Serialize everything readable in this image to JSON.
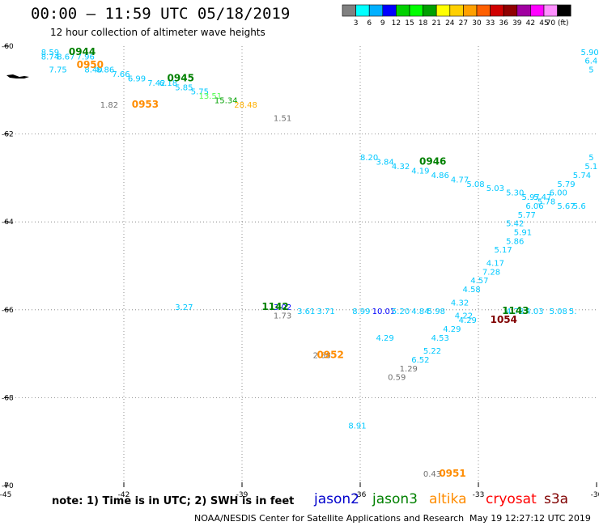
{
  "header": {
    "title": "00:00 – 11:59 UTC 05/18/2019",
    "subtitle": "12 hour collection of altimeter wave heights"
  },
  "colorbar": {
    "ticks": [
      "3",
      "6",
      "9",
      "12",
      "15",
      "18",
      "21",
      "24",
      "27",
      "30",
      "33",
      "36",
      "39",
      "42",
      "45",
      "70 (ft)"
    ],
    "colors": [
      "#808080",
      "#00ffff",
      "#00b0ff",
      "#0000ff",
      "#00d000",
      "#00ff00",
      "#00a000",
      "#ffff00",
      "#ffd000",
      "#ffa000",
      "#ff6000",
      "#d00000",
      "#900000",
      "#a000a0",
      "#ff00ff",
      "#ff90ff",
      "#000000"
    ]
  },
  "footer": {
    "note": "note: 1) Time is in UTC; 2) SWH is in feet",
    "satellites": [
      {
        "name": "jason2",
        "color": "#0000cc"
      },
      {
        "name": "jason3",
        "color": "#008000"
      },
      {
        "name": "altika",
        "color": "#ff8c00"
      },
      {
        "name": "cryosat",
        "color": "#ff0000"
      },
      {
        "name": "s3a",
        "color": "#800000"
      }
    ],
    "credit": "NOAA/NESDIS Center for Satellite Applications and Research",
    "generated": "May 19 12:27:12 UTC 2019"
  },
  "chart_data": {
    "type": "scatter",
    "x_ticks": [
      "-45",
      "-42",
      "-39",
      "-36",
      "-33",
      "-30"
    ],
    "y_ticks": [
      "-60",
      "-62",
      "-64",
      "-66",
      "-68",
      "-70"
    ],
    "xlim": [
      -45,
      -30
    ],
    "ylim": [
      -70,
      -60
    ],
    "grid": true,
    "points": [
      {
        "lon": -44.1,
        "lat": -60.2,
        "text": "8.59",
        "color": "#00c8ff"
      },
      {
        "lon": -44.1,
        "lat": -60.3,
        "text": "8.74",
        "color": "#00c8ff"
      },
      {
        "lon": -43.7,
        "lat": -60.3,
        "text": "8.67",
        "color": "#00c8ff"
      },
      {
        "lon": -43.9,
        "lat": -60.6,
        "text": "7.75",
        "color": "#00c8ff"
      },
      {
        "lon": -43.2,
        "lat": -60.3,
        "text": "7.96",
        "color": "#00c8ff"
      },
      {
        "lon": -43.0,
        "lat": -60.6,
        "text": "8.40",
        "color": "#00c8ff"
      },
      {
        "lon": -42.7,
        "lat": -60.6,
        "text": "8.86",
        "color": "#00c8ff"
      },
      {
        "lon": -42.3,
        "lat": -60.7,
        "text": "7.66",
        "color": "#00c8ff"
      },
      {
        "lon": -41.9,
        "lat": -60.8,
        "text": "6.99",
        "color": "#00c8ff"
      },
      {
        "lon": -41.4,
        "lat": -60.9,
        "text": "7.42",
        "color": "#00c8ff"
      },
      {
        "lon": -41.1,
        "lat": -60.9,
        "text": "6.18",
        "color": "#00c8ff"
      },
      {
        "lon": -40.7,
        "lat": -61.0,
        "text": "5.85",
        "color": "#00c8ff"
      },
      {
        "lon": -40.3,
        "lat": -61.1,
        "text": "5.75",
        "color": "#00c8ff"
      },
      {
        "lon": -40.1,
        "lat": -61.2,
        "text": "13.51",
        "color": "#50ff50"
      },
      {
        "lon": -39.7,
        "lat": -61.3,
        "text": "15.34",
        "color": "#00a000"
      },
      {
        "lon": -39.2,
        "lat": -61.4,
        "text": "28.48",
        "color": "#ffb000"
      },
      {
        "lon": -42.6,
        "lat": -61.4,
        "text": "1.82",
        "color": "#707070"
      },
      {
        "lon": -38.2,
        "lat": -61.7,
        "text": "1.51",
        "color": "#707070"
      },
      {
        "lon": -36.0,
        "lat": -62.6,
        "text": "8.20",
        "color": "#00c8ff"
      },
      {
        "lon": -35.6,
        "lat": -62.7,
        "text": "3.84",
        "color": "#00c8ff"
      },
      {
        "lon": -35.2,
        "lat": -62.8,
        "text": "4.32",
        "color": "#00c8ff"
      },
      {
        "lon": -34.7,
        "lat": -62.9,
        "text": "4.19",
        "color": "#00c8ff"
      },
      {
        "lon": -34.2,
        "lat": -63.0,
        "text": "4.86",
        "color": "#00c8ff"
      },
      {
        "lon": -33.7,
        "lat": -63.1,
        "text": "4.77",
        "color": "#00c8ff"
      },
      {
        "lon": -33.3,
        "lat": -63.2,
        "text": "5.08",
        "color": "#00c8ff"
      },
      {
        "lon": -32.8,
        "lat": -63.3,
        "text": "5.03",
        "color": "#00c8ff"
      },
      {
        "lon": -32.3,
        "lat": -63.4,
        "text": "5.30",
        "color": "#00c8ff"
      },
      {
        "lon": -31.9,
        "lat": -63.5,
        "text": "5.97",
        "color": "#00c8ff"
      },
      {
        "lon": -31.6,
        "lat": -63.5,
        "text": "5.47",
        "color": "#00c8ff"
      },
      {
        "lon": -31.5,
        "lat": -63.6,
        "text": "5.78",
        "color": "#00c8ff"
      },
      {
        "lon": -31.0,
        "lat": -63.7,
        "text": "5.67",
        "color": "#00c8ff"
      },
      {
        "lon": -30.6,
        "lat": -63.7,
        "text": "5.6",
        "color": "#00c8ff"
      },
      {
        "lon": -31.8,
        "lat": -63.7,
        "text": "6.06",
        "color": "#00c8ff"
      },
      {
        "lon": -31.2,
        "lat": -63.4,
        "text": "6.00",
        "color": "#00c8ff"
      },
      {
        "lon": -31.0,
        "lat": -63.2,
        "text": "5.79",
        "color": "#00c8ff"
      },
      {
        "lon": -30.6,
        "lat": -63.0,
        "text": "5.74",
        "color": "#00c8ff"
      },
      {
        "lon": -30.3,
        "lat": -62.8,
        "text": "5.1",
        "color": "#00c8ff"
      },
      {
        "lon": -30.2,
        "lat": -62.6,
        "text": "5",
        "color": "#00c8ff"
      },
      {
        "lon": -30.4,
        "lat": -60.2,
        "text": "5.90",
        "color": "#00c8ff"
      },
      {
        "lon": -30.3,
        "lat": -60.4,
        "text": "6.4",
        "color": "#00c8ff"
      },
      {
        "lon": -30.2,
        "lat": -60.6,
        "text": "5",
        "color": "#00c8ff"
      },
      {
        "lon": -32.0,
        "lat": -63.9,
        "text": "5.77",
        "color": "#00c8ff"
      },
      {
        "lon": -32.3,
        "lat": -64.1,
        "text": "5.42",
        "color": "#00c8ff"
      },
      {
        "lon": -32.1,
        "lat": -64.3,
        "text": "5.91",
        "color": "#00c8ff"
      },
      {
        "lon": -32.3,
        "lat": -64.5,
        "text": "5.86",
        "color": "#00c8ff"
      },
      {
        "lon": -32.6,
        "lat": -64.7,
        "text": "5.17",
        "color": "#00c8ff"
      },
      {
        "lon": -32.8,
        "lat": -65.0,
        "text": "4.17",
        "color": "#00c8ff"
      },
      {
        "lon": -32.9,
        "lat": -65.2,
        "text": "7.28",
        "color": "#00c8ff"
      },
      {
        "lon": -33.2,
        "lat": -65.4,
        "text": "4.57",
        "color": "#00c8ff"
      },
      {
        "lon": -33.4,
        "lat": -65.6,
        "text": "4.58",
        "color": "#00c8ff"
      },
      {
        "lon": -33.7,
        "lat": -65.9,
        "text": "4.32",
        "color": "#00c8ff"
      },
      {
        "lon": -33.6,
        "lat": -66.2,
        "text": "4.22",
        "color": "#00c8ff"
      },
      {
        "lon": -33.5,
        "lat": -66.3,
        "text": "4.29",
        "color": "#00c8ff"
      },
      {
        "lon": -33.9,
        "lat": -66.5,
        "text": "4.29",
        "color": "#00c8ff"
      },
      {
        "lon": -34.2,
        "lat": -66.7,
        "text": "4.53",
        "color": "#00c8ff"
      },
      {
        "lon": -34.4,
        "lat": -67.0,
        "text": "5.22",
        "color": "#00c8ff"
      },
      {
        "lon": -34.7,
        "lat": -67.2,
        "text": "6.52",
        "color": "#00c8ff"
      },
      {
        "lon": -35.0,
        "lat": -67.4,
        "text": "1.29",
        "color": "#707070"
      },
      {
        "lon": -35.3,
        "lat": -67.6,
        "text": "0.59",
        "color": "#707070"
      },
      {
        "lon": -40.7,
        "lat": -66.0,
        "text": "3.27",
        "color": "#00c8ff"
      },
      {
        "lon": -38.2,
        "lat": -66.0,
        "text": "3.02",
        "color": "#0000ff"
      },
      {
        "lon": -37.6,
        "lat": -66.1,
        "text": "3.61",
        "color": "#00c8ff"
      },
      {
        "lon": -37.1,
        "lat": -66.1,
        "text": "3.71",
        "color": "#00c8ff"
      },
      {
        "lon": -36.2,
        "lat": -66.1,
        "text": "8.99",
        "color": "#00c8ff"
      },
      {
        "lon": -35.7,
        "lat": -66.1,
        "text": "10.01",
        "color": "#0000ff"
      },
      {
        "lon": -35.2,
        "lat": -66.1,
        "text": "5.20",
        "color": "#00c8ff"
      },
      {
        "lon": -34.7,
        "lat": -66.1,
        "text": "4.84",
        "color": "#00c8ff"
      },
      {
        "lon": -34.3,
        "lat": -66.1,
        "text": "5.98",
        "color": "#00c8ff"
      },
      {
        "lon": -32.3,
        "lat": -66.1,
        "text": "4.78",
        "color": "#00c8ff"
      },
      {
        "lon": -31.8,
        "lat": -66.1,
        "text": "4.03",
        "color": "#00c8ff"
      },
      {
        "lon": -31.2,
        "lat": -66.1,
        "text": "5.08",
        "color": "#00c8ff"
      },
      {
        "lon": -30.7,
        "lat": -66.1,
        "text": "5.",
        "color": "#00c8ff"
      },
      {
        "lon": -38.2,
        "lat": -66.2,
        "text": "1.73",
        "color": "#707070"
      },
      {
        "lon": -37.2,
        "lat": -67.1,
        "text": "2.88",
        "color": "#707070"
      },
      {
        "lon": -35.6,
        "lat": -66.7,
        "text": "4.29",
        "color": "#00c8ff"
      },
      {
        "lon": -36.3,
        "lat": -68.7,
        "text": "8.91",
        "color": "#00c8ff"
      },
      {
        "lon": -34.4,
        "lat": -69.8,
        "text": "0.43",
        "color": "#707070"
      }
    ],
    "pass_times": [
      {
        "lon": -43.4,
        "lat": -60.2,
        "text": "0944",
        "color": "#008000"
      },
      {
        "lon": -43.2,
        "lat": -60.5,
        "text": "0950",
        "color": "#ff8c00"
      },
      {
        "lon": -40.9,
        "lat": -60.8,
        "text": "0945",
        "color": "#008000"
      },
      {
        "lon": -41.8,
        "lat": -61.4,
        "text": "0953",
        "color": "#ff8c00"
      },
      {
        "lon": -34.5,
        "lat": -62.7,
        "text": "0946",
        "color": "#008000"
      },
      {
        "lon": -38.5,
        "lat": -66.0,
        "text": "1142",
        "color": "#008000"
      },
      {
        "lon": -32.4,
        "lat": -66.1,
        "text": "1143",
        "color": "#008000"
      },
      {
        "lon": -32.7,
        "lat": -66.3,
        "text": "1054",
        "color": "#800000"
      },
      {
        "lon": -37.1,
        "lat": -67.1,
        "text": "0952",
        "color": "#ff8c00"
      },
      {
        "lon": -34.0,
        "lat": -69.8,
        "text": "0951",
        "color": "#ff8c00"
      }
    ]
  }
}
